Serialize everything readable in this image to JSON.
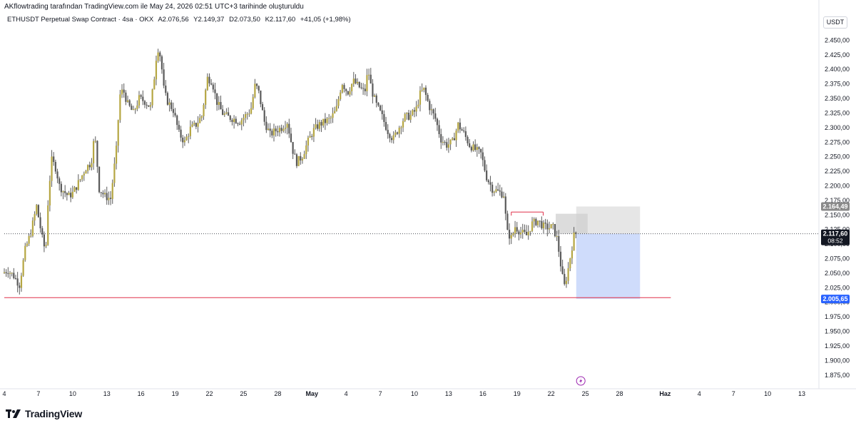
{
  "header": {
    "created_by": "AKflowtrading tarafından TradingView.com ile May 24, 2026 02:51 UTC+3 tarihinde oluşturuldu"
  },
  "legend": {
    "symbol": "ETHUSDT Perpetual Swap Contract · 4sa · OKX",
    "open": "A2.076,56",
    "high": "Y2.149,37",
    "low": "D2.073,50",
    "close": "K2.117,60",
    "change": "+41,05 (+1,98%)"
  },
  "currency": "USDT",
  "brand": {
    "name": "TradingView"
  },
  "colors": {
    "candle": "#5a5a5a",
    "candle_up_accent": "#b5a642",
    "support_line": "#e0304a",
    "last_price_label": "#131722",
    "target_label": "#2962ff",
    "top_label": "#8a8a8a",
    "long_zone": "#cfdcfb",
    "stop_zone": "#e6e6e6",
    "stop_zone_dark": "#cdcdcd"
  },
  "price_labels": {
    "top": "2.164,49",
    "last": "2.117,60",
    "countdown": "08:52",
    "target": "2.005,65"
  },
  "chart_data": {
    "type": "candlestick",
    "title": "ETHUSDT Perpetual Swap Contract · 4sa · OKX",
    "y_ticks": [
      "2.450,00",
      "2.425,00",
      "2.400,00",
      "2.375,00",
      "2.350,00",
      "2.325,00",
      "2.300,00",
      "2.275,00",
      "2.250,00",
      "2.225,00",
      "2.200,00",
      "2.175,00",
      "2.150,00",
      "2.125,00",
      "2.100,00",
      "2.075,00",
      "2.050,00",
      "2.025,00",
      "2.000,00",
      "1.975,00",
      "1.950,00",
      "1.925,00",
      "1.900,00",
      "1.875,00"
    ],
    "y_tick_values": [
      2450,
      2425,
      2400,
      2375,
      2350,
      2325,
      2300,
      2275,
      2250,
      2225,
      2200,
      2175,
      2150,
      2125,
      2100,
      2075,
      2050,
      2025,
      2000,
      1975,
      1950,
      1925,
      1900,
      1875
    ],
    "ylim": [
      1860,
      2475
    ],
    "x_ticks": [
      "4",
      "7",
      "10",
      "13",
      "16",
      "19",
      "22",
      "25",
      "28",
      "May",
      "4",
      "7",
      "10",
      "13",
      "16",
      "19",
      "22",
      "25",
      "28",
      "Haz",
      "4",
      "7",
      "10",
      "13"
    ],
    "x_tick_days": [
      0,
      3,
      6,
      9,
      12,
      15,
      18,
      21,
      24,
      27,
      30,
      33,
      36,
      39,
      42,
      45,
      48,
      51,
      54,
      58,
      61,
      64,
      67,
      70
    ],
    "xlim_days": [
      0,
      71.5
    ],
    "price_path": [
      [
        0.0,
        2050
      ],
      [
        0.5,
        2055
      ],
      [
        1.0,
        2045
      ],
      [
        1.5,
        2030
      ],
      [
        2.0,
        2090
      ],
      [
        2.5,
        2120
      ],
      [
        3.0,
        2165
      ],
      [
        3.5,
        2110
      ],
      [
        3.8,
        2085
      ],
      [
        4.0,
        2170
      ],
      [
        4.3,
        2245
      ],
      [
        4.7,
        2230
      ],
      [
        5.0,
        2200
      ],
      [
        5.4,
        2190
      ],
      [
        5.8,
        2182
      ],
      [
        6.2,
        2188
      ],
      [
        6.8,
        2210
      ],
      [
        7.3,
        2230
      ],
      [
        7.8,
        2240
      ],
      [
        8.1,
        2290
      ],
      [
        8.5,
        2195
      ],
      [
        9.0,
        2182
      ],
      [
        9.5,
        2178
      ],
      [
        10.0,
        2262
      ],
      [
        10.3,
        2355
      ],
      [
        10.6,
        2365
      ],
      [
        11.0,
        2340
      ],
      [
        11.5,
        2325
      ],
      [
        12.0,
        2350
      ],
      [
        12.5,
        2345
      ],
      [
        13.0,
        2335
      ],
      [
        13.3,
        2380
      ],
      [
        13.6,
        2440
      ],
      [
        13.9,
        2420
      ],
      [
        14.2,
        2360
      ],
      [
        14.5,
        2345
      ],
      [
        15.0,
        2330
      ],
      [
        15.5,
        2290
      ],
      [
        16.0,
        2275
      ],
      [
        16.5,
        2298
      ],
      [
        17.0,
        2305
      ],
      [
        17.5,
        2320
      ],
      [
        18.0,
        2385
      ],
      [
        18.4,
        2380
      ],
      [
        18.8,
        2345
      ],
      [
        19.3,
        2325
      ],
      [
        19.8,
        2318
      ],
      [
        20.3,
        2315
      ],
      [
        20.8,
        2310
      ],
      [
        21.3,
        2320
      ],
      [
        21.8,
        2330
      ],
      [
        22.2,
        2375
      ],
      [
        22.5,
        2360
      ],
      [
        23.0,
        2310
      ],
      [
        23.5,
        2288
      ],
      [
        24.0,
        2295
      ],
      [
        24.5,
        2300
      ],
      [
        25.0,
        2310
      ],
      [
        25.5,
        2260
      ],
      [
        25.8,
        2240
      ],
      [
        26.3,
        2250
      ],
      [
        26.8,
        2275
      ],
      [
        27.3,
        2295
      ],
      [
        27.8,
        2305
      ],
      [
        28.3,
        2310
      ],
      [
        28.8,
        2315
      ],
      [
        29.3,
        2330
      ],
      [
        29.8,
        2378
      ],
      [
        30.3,
        2360
      ],
      [
        30.8,
        2380
      ],
      [
        31.3,
        2370
      ],
      [
        31.8,
        2360
      ],
      [
        32.1,
        2400
      ],
      [
        32.4,
        2365
      ],
      [
        32.8,
        2340
      ],
      [
        33.3,
        2320
      ],
      [
        33.8,
        2295
      ],
      [
        34.3,
        2280
      ],
      [
        34.8,
        2300
      ],
      [
        35.3,
        2318
      ],
      [
        35.8,
        2320
      ],
      [
        36.3,
        2330
      ],
      [
        36.7,
        2360
      ],
      [
        37.0,
        2365
      ],
      [
        37.5,
        2335
      ],
      [
        38.0,
        2315
      ],
      [
        38.5,
        2280
      ],
      [
        39.0,
        2270
      ],
      [
        39.5,
        2275
      ],
      [
        40.0,
        2305
      ],
      [
        40.5,
        2290
      ],
      [
        41.0,
        2270
      ],
      [
        41.5,
        2262
      ],
      [
        42.0,
        2255
      ],
      [
        42.5,
        2215
      ],
      [
        43.0,
        2195
      ],
      [
        43.5,
        2190
      ],
      [
        44.0,
        2185
      ],
      [
        44.3,
        2120
      ],
      [
        44.7,
        2110
      ],
      [
        45.0,
        2130
      ],
      [
        45.5,
        2120
      ],
      [
        46.0,
        2115
      ],
      [
        46.5,
        2135
      ],
      [
        47.0,
        2140
      ],
      [
        47.5,
        2130
      ],
      [
        48.0,
        2128
      ],
      [
        48.3,
        2130
      ],
      [
        48.7,
        2108
      ],
      [
        49.0,
        2065
      ],
      [
        49.3,
        2025
      ],
      [
        49.6,
        2050
      ],
      [
        49.9,
        2085
      ],
      [
        50.2,
        2117.6
      ]
    ],
    "lines": [
      {
        "label": "support",
        "value": 2008,
        "from_day": 0,
        "to_day": 58.5
      },
      {
        "label": "last_price",
        "value": 2117.6,
        "from_day": 0,
        "to_day": 71.5
      },
      {
        "label": "resistance",
        "value": 2155,
        "from_day": 44.5,
        "to_day": 47.3
      }
    ],
    "position": {
      "entry": 2117.6,
      "stop": 2164.49,
      "target": 2005.65,
      "from_day": 50.2,
      "to_day": 55.8
    },
    "grid": false,
    "legend_position": "top-left"
  }
}
